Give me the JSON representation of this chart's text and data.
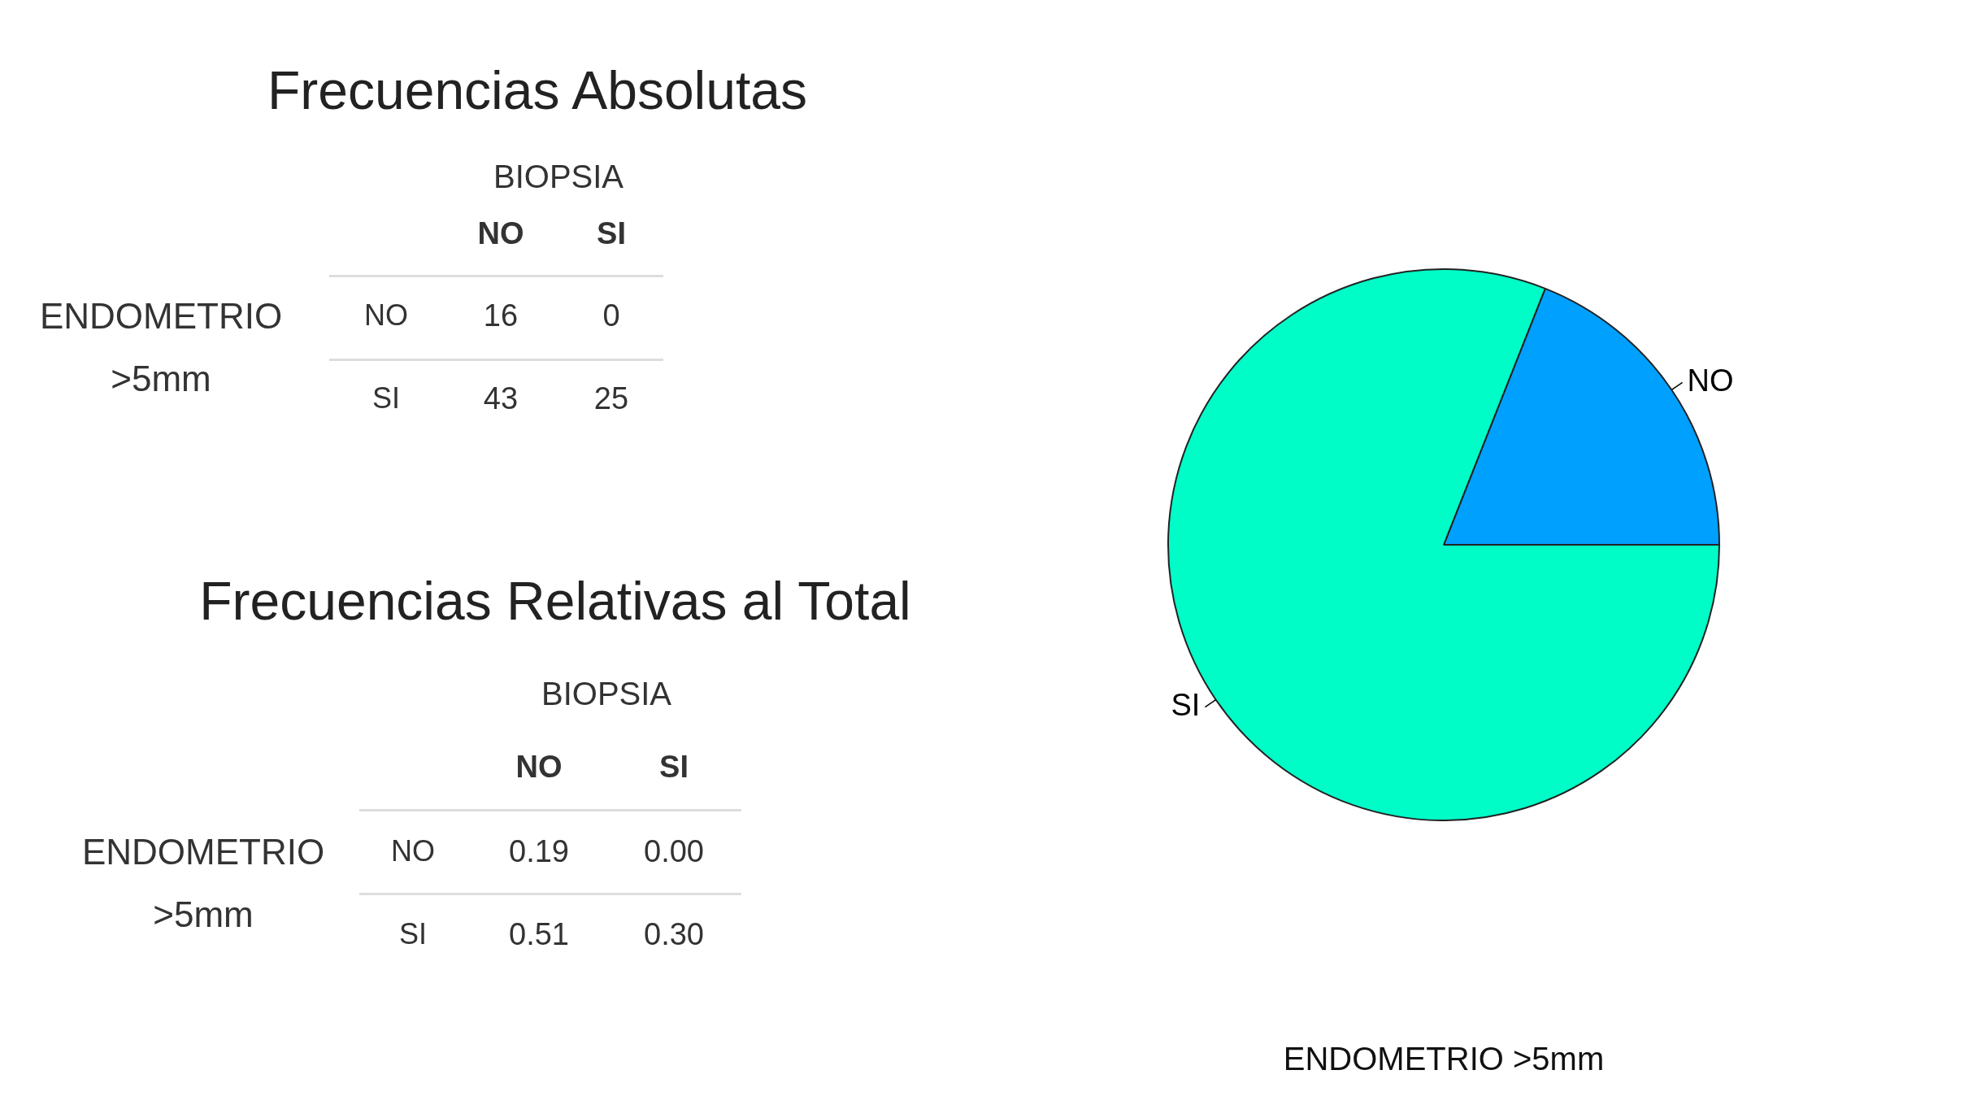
{
  "chart_data": [
    {
      "type": "heatmap",
      "title": "Frecuencias Absolutas",
      "xlabel": "BIOPSIA",
      "ylabel": "ENDOMETRIO >5mm",
      "categories": [
        "NO",
        "SI"
      ],
      "y_categories": [
        "NO",
        "SI"
      ],
      "cells": [
        [
          16,
          0
        ],
        [
          43,
          25
        ]
      ],
      "cell_labels": [
        [
          "16",
          "0"
        ],
        [
          "43",
          "25"
        ]
      ]
    },
    {
      "type": "heatmap",
      "title": "Frecuencias Relativas al Total",
      "xlabel": "BIOPSIA",
      "ylabel": "ENDOMETRIO >5mm",
      "categories": [
        "NO",
        "SI"
      ],
      "y_categories": [
        "NO",
        "SI"
      ],
      "cells": [
        [
          0.19,
          0.0
        ],
        [
          0.51,
          0.3
        ]
      ],
      "cell_labels": [
        [
          "0.19",
          "0.00"
        ],
        [
          "0.51",
          "0.30"
        ]
      ]
    },
    {
      "type": "pie",
      "xlabel": "ENDOMETRIO >5mm",
      "categories": [
        "NO",
        "SI"
      ],
      "values": [
        19,
        81
      ],
      "colors": [
        "#00a0ff",
        "#00fdc8"
      ]
    }
  ]
}
